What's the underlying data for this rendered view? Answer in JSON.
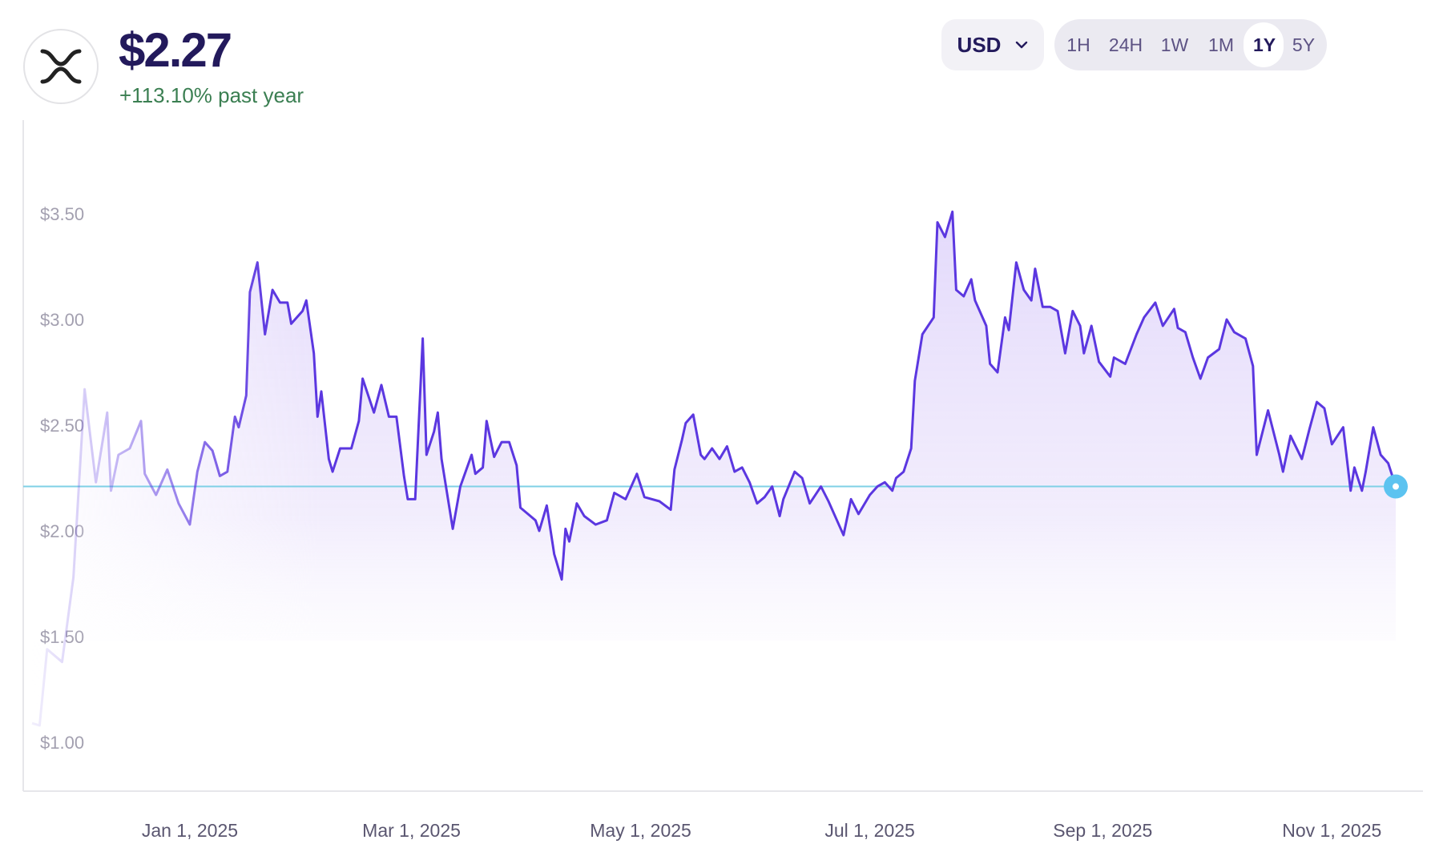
{
  "asset": {
    "logo_icon": "xrp-logo-icon",
    "price": "$2.27",
    "change": "+113.10% past year",
    "change_color": "#3b7f52"
  },
  "currency": {
    "selected": "USD",
    "icon": "chevron-down-icon"
  },
  "ranges": {
    "items": [
      "1H",
      "24H",
      "1W",
      "1M",
      "1Y",
      "5Y"
    ],
    "active": "1Y"
  },
  "colors": {
    "line": "#5b37e0",
    "fill": "#e4dcfb",
    "reference": "#7fd0e6",
    "marker": "#5cc3f0"
  },
  "chart_data": {
    "type": "area",
    "x_domain": [
      "2024-11-20",
      "2025-11-18"
    ],
    "ylim": [
      1.0,
      3.6
    ],
    "y_ticks": [
      "$1.00",
      "$1.50",
      "$2.00",
      "$2.50",
      "$3.00",
      "$3.50"
    ],
    "y_tick_values": [
      1.0,
      1.5,
      2.0,
      2.5,
      3.0,
      3.5
    ],
    "x_ticks": [
      {
        "label": "Jan 1, 2025",
        "date": "2025-01-01"
      },
      {
        "label": "Mar 1, 2025",
        "date": "2025-03-01"
      },
      {
        "label": "May 1, 2025",
        "date": "2025-05-01"
      },
      {
        "label": "Jul 1, 2025",
        "date": "2025-07-01"
      },
      {
        "label": "Sep 1, 2025",
        "date": "2025-09-01"
      },
      {
        "label": "Nov 1, 2025",
        "date": "2025-11-01"
      }
    ],
    "grid": false,
    "series": [
      {
        "points": [
          [
            "2024-11-20",
            1.09
          ],
          [
            "2024-11-22",
            1.08
          ],
          [
            "2024-11-24",
            1.44
          ],
          [
            "2024-11-28",
            1.38
          ],
          [
            "2024-12-01",
            1.78
          ],
          [
            "2024-12-04",
            2.67
          ],
          [
            "2024-12-07",
            2.23
          ],
          [
            "2024-12-10",
            2.56
          ],
          [
            "2024-12-11",
            2.19
          ],
          [
            "2024-12-13",
            2.36
          ],
          [
            "2024-12-16",
            2.39
          ],
          [
            "2024-12-19",
            2.52
          ],
          [
            "2024-12-20",
            2.27
          ],
          [
            "2024-12-23",
            2.17
          ],
          [
            "2024-12-26",
            2.29
          ],
          [
            "2024-12-29",
            2.13
          ],
          [
            "2025-01-01",
            2.03
          ],
          [
            "2025-01-03",
            2.28
          ],
          [
            "2025-01-05",
            2.42
          ],
          [
            "2025-01-07",
            2.38
          ],
          [
            "2025-01-09",
            2.26
          ],
          [
            "2025-01-11",
            2.28
          ],
          [
            "2025-01-13",
            2.54
          ],
          [
            "2025-01-14",
            2.49
          ],
          [
            "2025-01-16",
            2.64
          ],
          [
            "2025-01-17",
            3.13
          ],
          [
            "2025-01-19",
            3.27
          ],
          [
            "2025-01-21",
            2.93
          ],
          [
            "2025-01-23",
            3.14
          ],
          [
            "2025-01-25",
            3.08
          ],
          [
            "2025-01-27",
            3.08
          ],
          [
            "2025-01-28",
            2.98
          ],
          [
            "2025-01-31",
            3.04
          ],
          [
            "2025-02-01",
            3.09
          ],
          [
            "2025-02-03",
            2.84
          ],
          [
            "2025-02-04",
            2.54
          ],
          [
            "2025-02-05",
            2.66
          ],
          [
            "2025-02-07",
            2.34
          ],
          [
            "2025-02-08",
            2.28
          ],
          [
            "2025-02-10",
            2.39
          ],
          [
            "2025-02-13",
            2.39
          ],
          [
            "2025-02-15",
            2.52
          ],
          [
            "2025-02-16",
            2.72
          ],
          [
            "2025-02-19",
            2.56
          ],
          [
            "2025-02-21",
            2.69
          ],
          [
            "2025-02-23",
            2.54
          ],
          [
            "2025-02-25",
            2.54
          ],
          [
            "2025-02-27",
            2.26
          ],
          [
            "2025-02-28",
            2.15
          ],
          [
            "2025-03-02",
            2.15
          ],
          [
            "2025-03-04",
            2.91
          ],
          [
            "2025-03-05",
            2.36
          ],
          [
            "2025-03-07",
            2.47
          ],
          [
            "2025-03-08",
            2.56
          ],
          [
            "2025-03-09",
            2.34
          ],
          [
            "2025-03-12",
            2.01
          ],
          [
            "2025-03-14",
            2.21
          ],
          [
            "2025-03-17",
            2.36
          ],
          [
            "2025-03-18",
            2.27
          ],
          [
            "2025-03-20",
            2.3
          ],
          [
            "2025-03-21",
            2.52
          ],
          [
            "2025-03-23",
            2.35
          ],
          [
            "2025-03-25",
            2.42
          ],
          [
            "2025-03-27",
            2.42
          ],
          [
            "2025-03-29",
            2.31
          ],
          [
            "2025-03-30",
            2.11
          ],
          [
            "2025-04-01",
            2.08
          ],
          [
            "2025-04-03",
            2.05
          ],
          [
            "2025-04-04",
            2.0
          ],
          [
            "2025-04-06",
            2.12
          ],
          [
            "2025-04-08",
            1.89
          ],
          [
            "2025-04-10",
            1.77
          ],
          [
            "2025-04-11",
            2.01
          ],
          [
            "2025-04-12",
            1.95
          ],
          [
            "2025-04-14",
            2.13
          ],
          [
            "2025-04-16",
            2.07
          ],
          [
            "2025-04-19",
            2.03
          ],
          [
            "2025-04-22",
            2.05
          ],
          [
            "2025-04-24",
            2.18
          ],
          [
            "2025-04-27",
            2.15
          ],
          [
            "2025-04-30",
            2.27
          ],
          [
            "2025-05-02",
            2.16
          ],
          [
            "2025-05-06",
            2.14
          ],
          [
            "2025-05-09",
            2.1
          ],
          [
            "2025-05-10",
            2.29
          ],
          [
            "2025-05-12",
            2.43
          ],
          [
            "2025-05-13",
            2.51
          ],
          [
            "2025-05-15",
            2.55
          ],
          [
            "2025-05-17",
            2.36
          ],
          [
            "2025-05-18",
            2.34
          ],
          [
            "2025-05-20",
            2.39
          ],
          [
            "2025-05-22",
            2.34
          ],
          [
            "2025-05-24",
            2.4
          ],
          [
            "2025-05-26",
            2.28
          ],
          [
            "2025-05-28",
            2.3
          ],
          [
            "2025-05-30",
            2.23
          ],
          [
            "2025-06-01",
            2.13
          ],
          [
            "2025-06-03",
            2.16
          ],
          [
            "2025-06-05",
            2.21
          ],
          [
            "2025-06-07",
            2.07
          ],
          [
            "2025-06-08",
            2.15
          ],
          [
            "2025-06-11",
            2.28
          ],
          [
            "2025-06-13",
            2.25
          ],
          [
            "2025-06-15",
            2.13
          ],
          [
            "2025-06-18",
            2.21
          ],
          [
            "2025-06-20",
            2.14
          ],
          [
            "2025-06-22",
            2.06
          ],
          [
            "2025-06-24",
            1.98
          ],
          [
            "2025-06-26",
            2.15
          ],
          [
            "2025-06-28",
            2.08
          ],
          [
            "2025-07-01",
            2.17
          ],
          [
            "2025-07-03",
            2.21
          ],
          [
            "2025-07-05",
            2.23
          ],
          [
            "2025-07-07",
            2.19
          ],
          [
            "2025-07-08",
            2.25
          ],
          [
            "2025-07-10",
            2.28
          ],
          [
            "2025-07-12",
            2.39
          ],
          [
            "2025-07-13",
            2.71
          ],
          [
            "2025-07-15",
            2.93
          ],
          [
            "2025-07-18",
            3.01
          ],
          [
            "2025-07-19",
            3.46
          ],
          [
            "2025-07-21",
            3.39
          ],
          [
            "2025-07-22",
            3.45
          ],
          [
            "2025-07-23",
            3.51
          ],
          [
            "2025-07-24",
            3.14
          ],
          [
            "2025-07-26",
            3.11
          ],
          [
            "2025-07-28",
            3.19
          ],
          [
            "2025-07-29",
            3.09
          ],
          [
            "2025-08-01",
            2.97
          ],
          [
            "2025-08-02",
            2.79
          ],
          [
            "2025-08-04",
            2.75
          ],
          [
            "2025-08-06",
            3.01
          ],
          [
            "2025-08-07",
            2.95
          ],
          [
            "2025-08-09",
            3.27
          ],
          [
            "2025-08-11",
            3.14
          ],
          [
            "2025-08-13",
            3.09
          ],
          [
            "2025-08-14",
            3.24
          ],
          [
            "2025-08-16",
            3.06
          ],
          [
            "2025-08-18",
            3.06
          ],
          [
            "2025-08-20",
            3.04
          ],
          [
            "2025-08-22",
            2.84
          ],
          [
            "2025-08-24",
            3.04
          ],
          [
            "2025-08-26",
            2.97
          ],
          [
            "2025-08-27",
            2.84
          ],
          [
            "2025-08-29",
            2.97
          ],
          [
            "2025-08-31",
            2.8
          ],
          [
            "2025-09-03",
            2.73
          ],
          [
            "2025-09-04",
            2.82
          ],
          [
            "2025-09-07",
            2.79
          ],
          [
            "2025-09-10",
            2.93
          ],
          [
            "2025-09-12",
            3.01
          ],
          [
            "2025-09-15",
            3.08
          ],
          [
            "2025-09-17",
            2.97
          ],
          [
            "2025-09-20",
            3.05
          ],
          [
            "2025-09-21",
            2.96
          ],
          [
            "2025-09-23",
            2.94
          ],
          [
            "2025-09-25",
            2.82
          ],
          [
            "2025-09-27",
            2.72
          ],
          [
            "2025-09-29",
            2.82
          ],
          [
            "2025-10-02",
            2.86
          ],
          [
            "2025-10-04",
            3.0
          ],
          [
            "2025-10-06",
            2.94
          ],
          [
            "2025-10-09",
            2.91
          ],
          [
            "2025-10-11",
            2.78
          ],
          [
            "2025-10-12",
            2.36
          ],
          [
            "2025-10-15",
            2.57
          ],
          [
            "2025-10-18",
            2.36
          ],
          [
            "2025-10-19",
            2.28
          ],
          [
            "2025-10-21",
            2.45
          ],
          [
            "2025-10-24",
            2.34
          ],
          [
            "2025-10-26",
            2.48
          ],
          [
            "2025-10-28",
            2.61
          ],
          [
            "2025-10-30",
            2.58
          ],
          [
            "2025-11-01",
            2.41
          ],
          [
            "2025-11-04",
            2.49
          ],
          [
            "2025-11-06",
            2.19
          ],
          [
            "2025-11-07",
            2.3
          ],
          [
            "2025-11-09",
            2.19
          ],
          [
            "2025-11-10",
            2.28
          ],
          [
            "2025-11-12",
            2.49
          ],
          [
            "2025-11-14",
            2.36
          ],
          [
            "2025-11-16",
            2.32
          ],
          [
            "2025-11-18",
            2.21
          ]
        ]
      }
    ]
  }
}
